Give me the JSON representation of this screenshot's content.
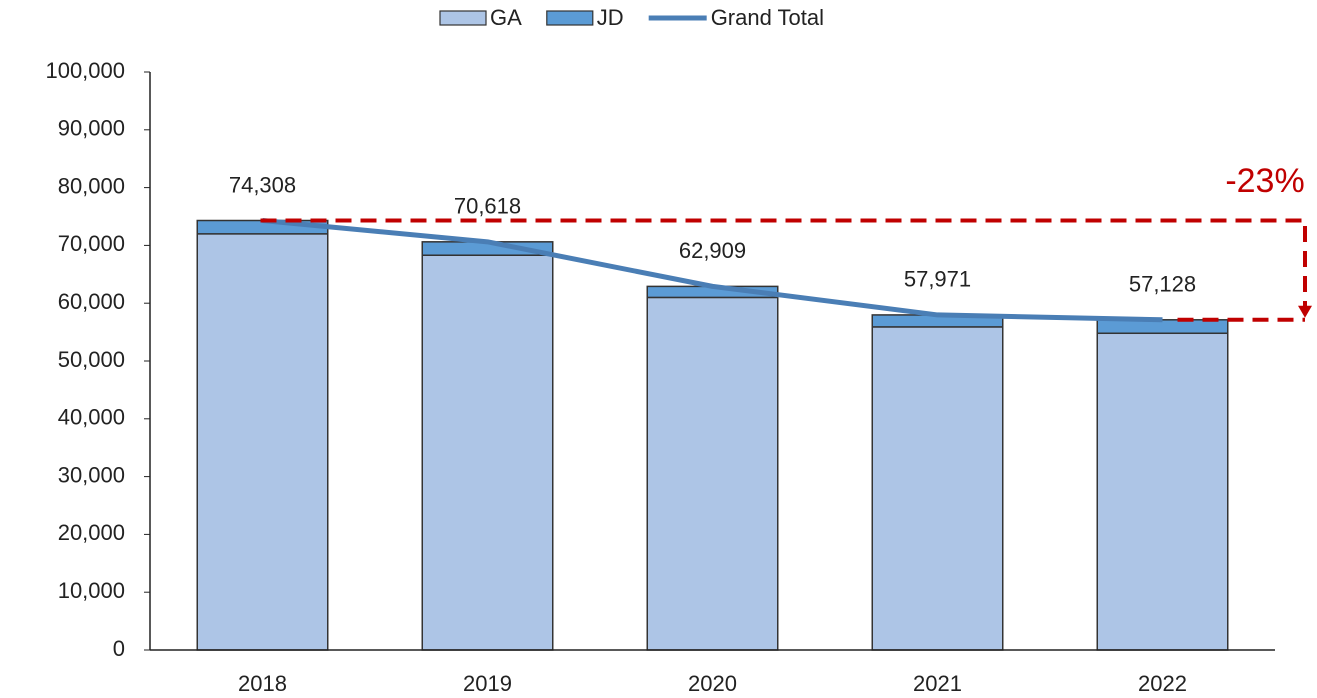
{
  "chart_data": {
    "type": "bar",
    "categories": [
      "2018",
      "2019",
      "2020",
      "2021",
      "2022"
    ],
    "series": [
      {
        "name": "GA",
        "color": "#adc5e6",
        "values": [
          72000,
          68300,
          61000,
          55900,
          54800
        ]
      },
      {
        "name": "JD",
        "color": "#5b9bd5",
        "values": [
          2308,
          2318,
          1909,
          2071,
          2328
        ]
      },
      {
        "name": "Grand Total",
        "type": "line",
        "color": "#4a7eb5",
        "values": [
          74308,
          70618,
          62909,
          57971,
          57128
        ],
        "value_labels": [
          "74,308",
          "70,618",
          "62,909",
          "57,971",
          "57,128"
        ]
      }
    ],
    "ylim": [
      0,
      100000
    ],
    "yticks": [
      0,
      {
        "value": 10000,
        "label": "10,000"
      },
      {
        "value": 20000,
        "label": "20,000"
      },
      {
        "value": 30000,
        "label": "30,000"
      },
      {
        "value": 40000,
        "label": "40,000"
      },
      {
        "value": 50000,
        "label": "50,000"
      },
      {
        "value": 60000,
        "label": "60,000"
      },
      {
        "value": 70000,
        "label": "70,000"
      },
      {
        "value": 80000,
        "label": "80,000"
      },
      {
        "value": 90000,
        "label": "90,000"
      },
      {
        "value": 100000,
        "label": "100,000"
      }
    ],
    "annotation": "-23%",
    "annotation_color": "#c00000",
    "legend": "top",
    "grid": false
  }
}
